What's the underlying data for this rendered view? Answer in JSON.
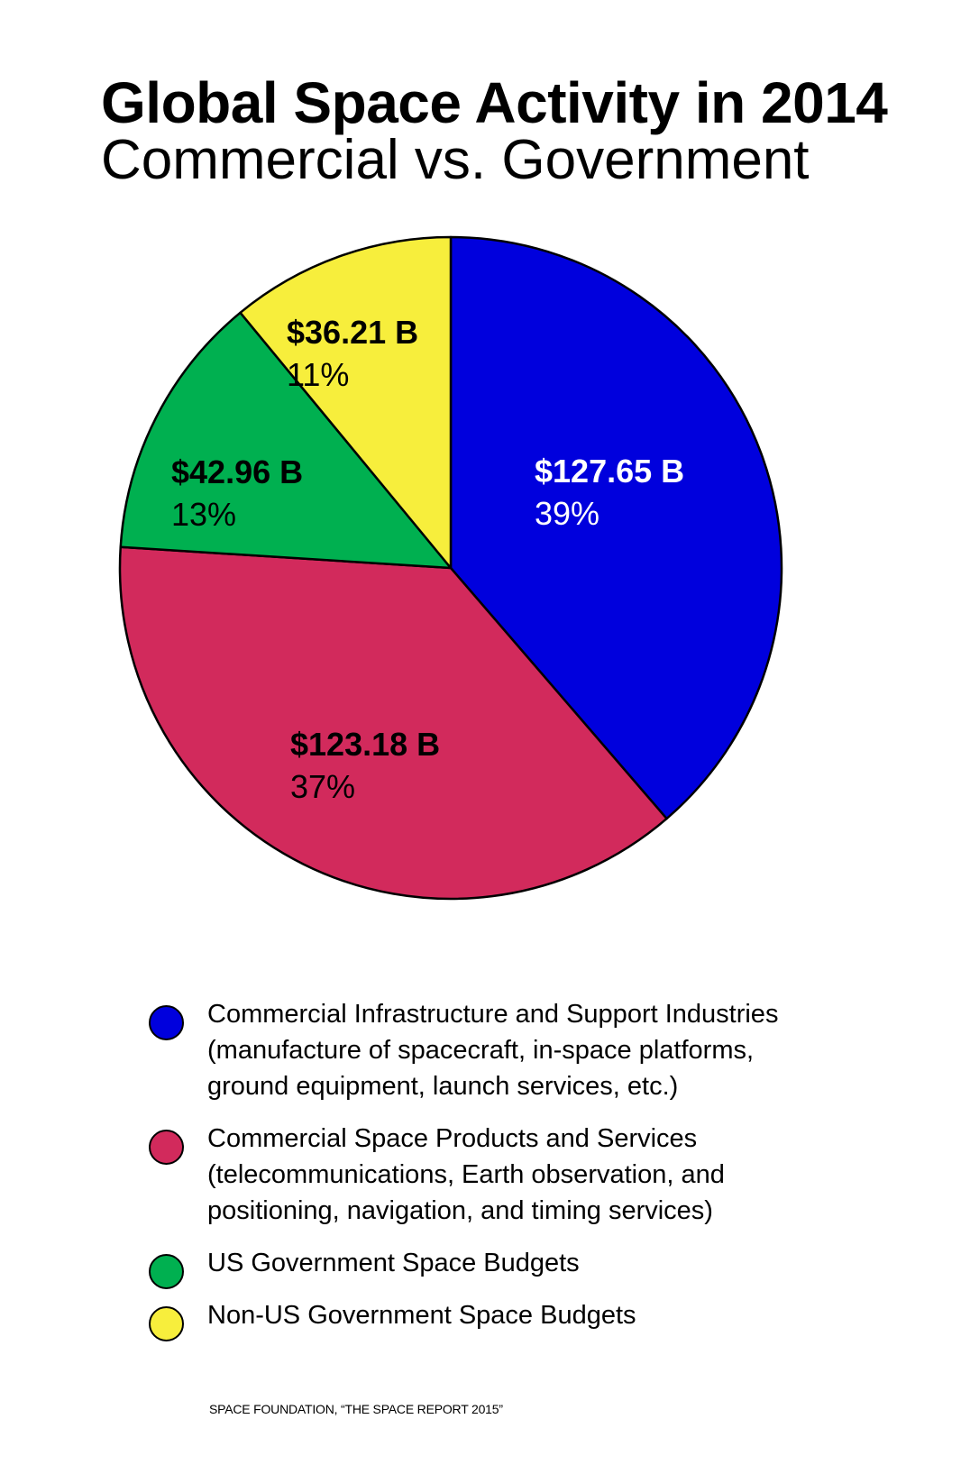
{
  "title": "Global Space Activity in 2014",
  "subtitle": "Commercial vs. Government",
  "source": "SPACE FOUNDATION, “THE SPACE REPORT 2015”",
  "chart_data": {
    "type": "pie",
    "title": "Global Space Activity in 2014",
    "subtitle": "Commercial vs. Government",
    "slices": [
      {
        "label_lines": [
          "Commercial Infrastructure and Support Industries",
          "(manufacture of spacecraft, in-space platforms,",
          "ground equipment, launch services, etc.)"
        ],
        "value": 127.65,
        "value_label": "$127.65 B",
        "percent": 39,
        "percent_label": "39%",
        "color": "#0000dd",
        "text_color": "#ffffff"
      },
      {
        "label_lines": [
          "Commercial Space Products and Services",
          "(telecommunications, Earth observation, and",
          "positioning, navigation, and timing services)"
        ],
        "value": 123.18,
        "value_label": "$123.18 B",
        "percent": 37,
        "percent_label": "37%",
        "color": "#d22a5c",
        "text_color": "#000000"
      },
      {
        "label_lines": [
          "US Government Space Budgets"
        ],
        "value": 42.96,
        "value_label": "$42.96 B",
        "percent": 13,
        "percent_label": "13%",
        "color": "#00b050",
        "text_color": "#000000"
      },
      {
        "label_lines": [
          "Non-US Government Space Budgets"
        ],
        "value": 36.21,
        "value_label": "$36.21 B",
        "percent": 11,
        "percent_label": "11%",
        "color": "#f7ee3c",
        "text_color": "#000000"
      }
    ],
    "legend_position": "bottom"
  }
}
